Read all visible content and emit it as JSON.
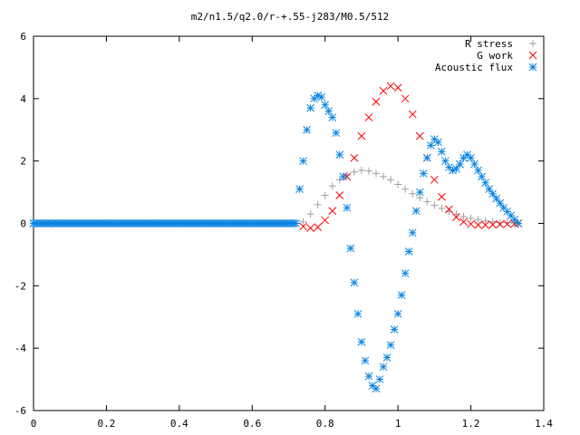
{
  "chart_data": {
    "type": "scatter",
    "title": "m2/n1.5/q2.0/r-+.55-j283/M0.5/512",
    "xlabel": "",
    "ylabel": "",
    "xlim": [
      0,
      1.4
    ],
    "ylim": [
      -6,
      6
    ],
    "xticks": [
      "0",
      "0.2",
      "0.4",
      "0.6",
      "0.8",
      "1",
      "1.2",
      "1.4"
    ],
    "yticks": [
      "-6",
      "-4",
      "-2",
      "0",
      "2",
      "4",
      "6"
    ],
    "grid": false,
    "legend": "top-right",
    "series": [
      {
        "name": "R stress",
        "marker": "+",
        "color": "#a0a0a0",
        "x": [
          0.74,
          0.76,
          0.78,
          0.8,
          0.82,
          0.84,
          0.86,
          0.88,
          0.9,
          0.92,
          0.94,
          0.96,
          0.98,
          1.0,
          1.02,
          1.04,
          1.06,
          1.08,
          1.1,
          1.12,
          1.14,
          1.16,
          1.18,
          1.2,
          1.22,
          1.24,
          1.26,
          1.28,
          1.3,
          1.32,
          1.33
        ],
        "y": [
          0.05,
          0.3,
          0.6,
          0.9,
          1.2,
          1.4,
          1.55,
          1.65,
          1.7,
          1.68,
          1.6,
          1.5,
          1.4,
          1.25,
          1.1,
          0.95,
          0.82,
          0.7,
          0.58,
          0.48,
          0.38,
          0.3,
          0.22,
          0.16,
          0.12,
          0.08,
          0.05,
          0.03,
          0.02,
          0.01,
          0.0
        ]
      },
      {
        "name": "G work",
        "marker": "x",
        "color": "#ff0000",
        "x": [
          0.74,
          0.76,
          0.78,
          0.8,
          0.82,
          0.84,
          0.86,
          0.88,
          0.9,
          0.92,
          0.94,
          0.96,
          0.98,
          1.0,
          1.02,
          1.04,
          1.06,
          1.08,
          1.1,
          1.12,
          1.14,
          1.16,
          1.18,
          1.2,
          1.22,
          1.24,
          1.26,
          1.28,
          1.3,
          1.32,
          1.33
        ],
        "y": [
          -0.1,
          -0.15,
          -0.12,
          0.1,
          0.4,
          0.9,
          1.5,
          2.1,
          2.8,
          3.4,
          3.9,
          4.25,
          4.4,
          4.35,
          4.0,
          3.5,
          2.8,
          2.1,
          1.4,
          0.85,
          0.45,
          0.2,
          0.05,
          -0.02,
          -0.05,
          -0.05,
          -0.04,
          -0.03,
          -0.02,
          -0.01,
          0.0
        ]
      },
      {
        "name": "Acoustic flux",
        "marker": "*",
        "color": "#0a84e0",
        "x": [
          0.0,
          0.72,
          0.73,
          0.74,
          0.75,
          0.76,
          0.77,
          0.78,
          0.79,
          0.8,
          0.81,
          0.82,
          0.83,
          0.84,
          0.85,
          0.86,
          0.87,
          0.88,
          0.89,
          0.9,
          0.91,
          0.92,
          0.93,
          0.94,
          0.95,
          0.96,
          0.97,
          0.98,
          0.99,
          1.0,
          1.01,
          1.02,
          1.03,
          1.04,
          1.05,
          1.06,
          1.07,
          1.08,
          1.09,
          1.1,
          1.11,
          1.12,
          1.13,
          1.14,
          1.15,
          1.16,
          1.17,
          1.18,
          1.19,
          1.2,
          1.21,
          1.22,
          1.23,
          1.24,
          1.25,
          1.26,
          1.27,
          1.28,
          1.29,
          1.3,
          1.31,
          1.32,
          1.33
        ],
        "y": [
          0.0,
          0.0,
          1.1,
          2.0,
          3.0,
          3.7,
          4.0,
          4.1,
          4.05,
          3.8,
          3.6,
          3.4,
          2.9,
          2.2,
          1.5,
          0.5,
          -0.8,
          -1.9,
          -2.9,
          -3.8,
          -4.4,
          -4.9,
          -5.2,
          -5.3,
          -5.0,
          -4.6,
          -4.3,
          -3.9,
          -3.4,
          -2.9,
          -2.3,
          -1.6,
          -0.9,
          -0.3,
          0.4,
          1.0,
          1.6,
          2.1,
          2.5,
          2.7,
          2.6,
          2.3,
          2.0,
          1.8,
          1.7,
          1.75,
          1.9,
          2.1,
          2.2,
          2.1,
          1.9,
          1.7,
          1.5,
          1.3,
          1.1,
          0.95,
          0.8,
          0.65,
          0.5,
          0.38,
          0.25,
          0.12,
          0.0
        ]
      }
    ]
  }
}
